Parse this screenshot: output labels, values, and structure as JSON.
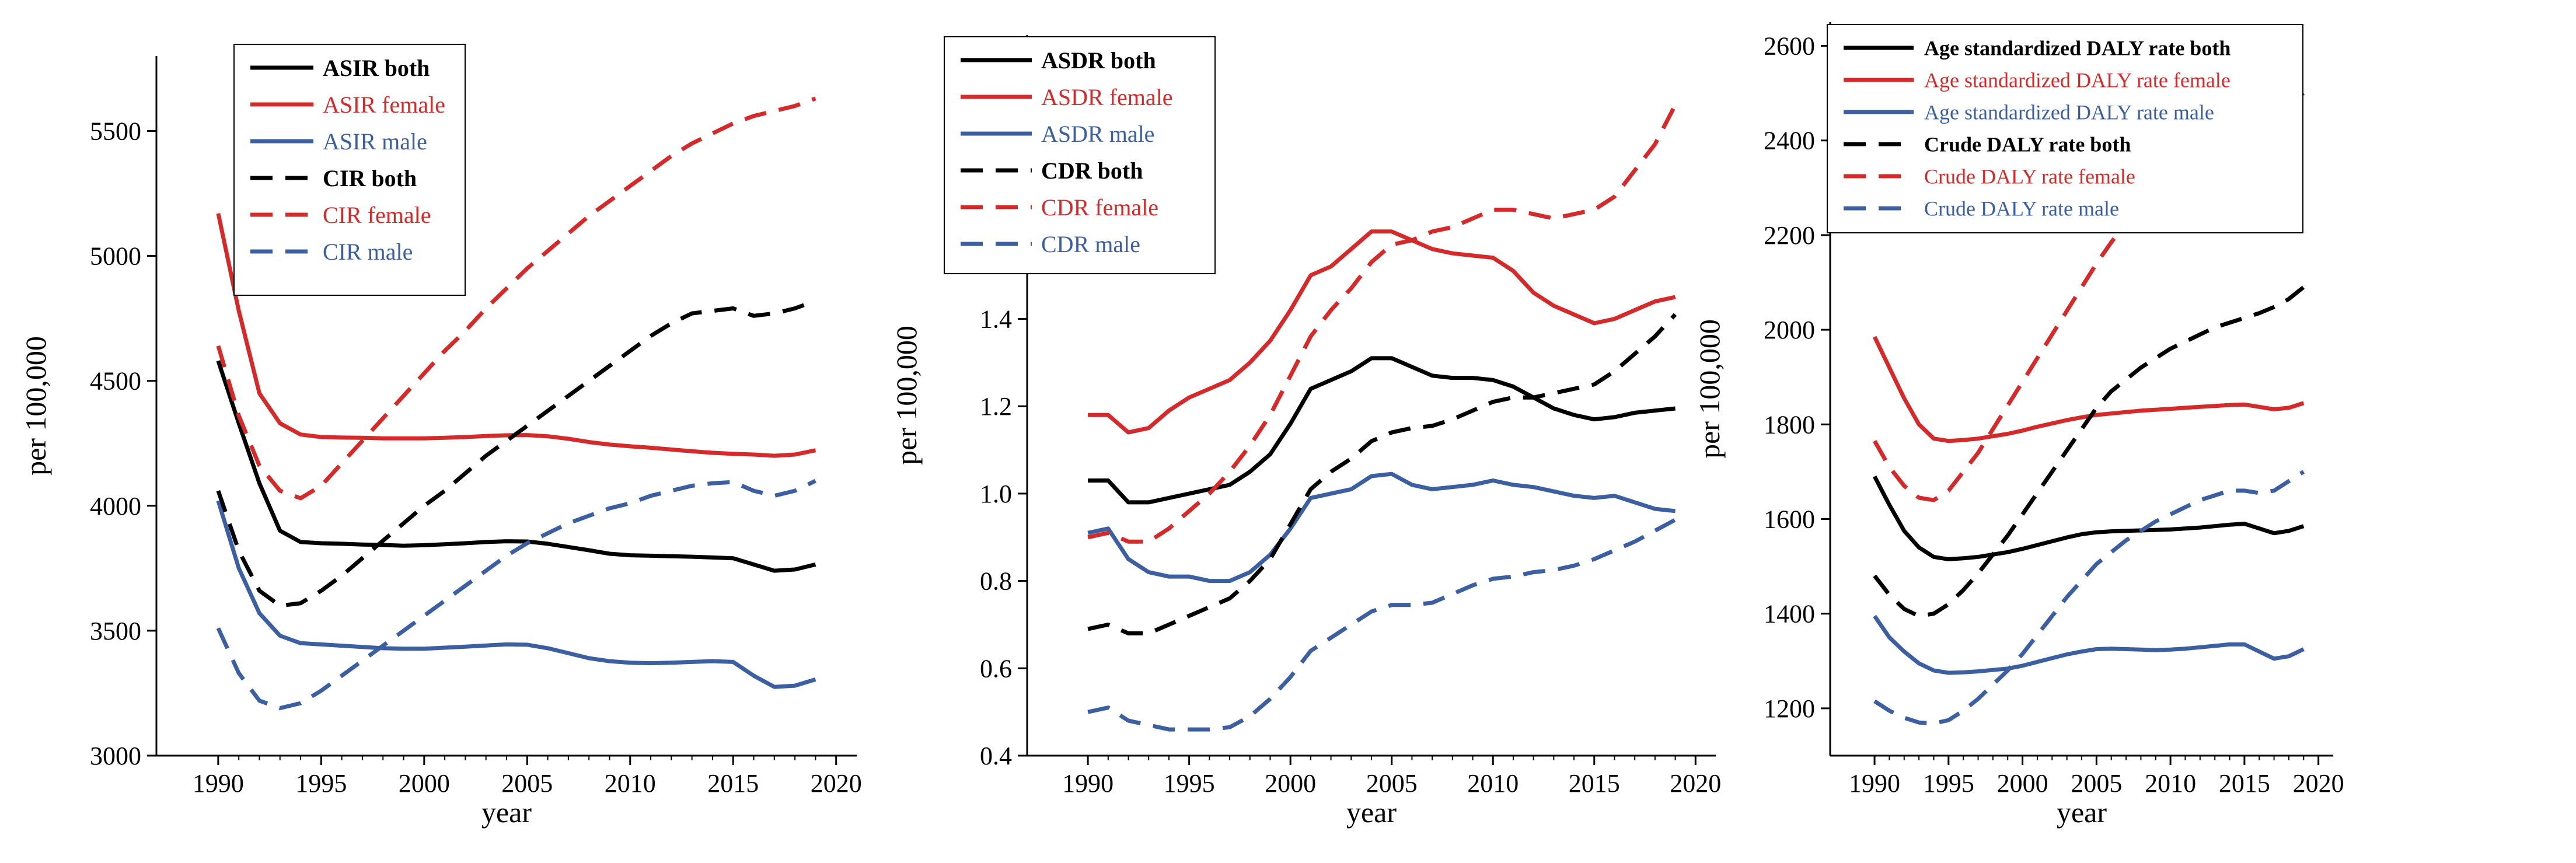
{
  "chart_data": [
    {
      "type": "line",
      "xlabel": "year",
      "ylabel": "per 100,000",
      "xlim": [
        1987,
        2021
      ],
      "ylim": [
        3000,
        5800
      ],
      "xticks": [
        "1990",
        "1995",
        "2000",
        "2005",
        "2010",
        "2015",
        "2020"
      ],
      "yticks": [
        "3000",
        "3500",
        "4000",
        "4500",
        "5000",
        "5500"
      ],
      "legend": "top-left",
      "x": [
        1990,
        1991,
        1992,
        1993,
        1994,
        1995,
        1996,
        1997,
        1998,
        1999,
        2000,
        2001,
        2002,
        2003,
        2004,
        2005,
        2006,
        2007,
        2008,
        2009,
        2010,
        2011,
        2012,
        2013,
        2014,
        2015,
        2016,
        2017,
        2018,
        2019
      ],
      "series": [
        {
          "name": "ASIR both",
          "color": "#000000",
          "dash": "solid",
          "values": [
            4580,
            4330,
            4090,
            3900,
            3855,
            3850,
            3848,
            3845,
            3843,
            3840,
            3842,
            3846,
            3850,
            3855,
            3858,
            3857,
            3848,
            3835,
            3822,
            3808,
            3802,
            3800,
            3798,
            3796,
            3793,
            3790,
            3765,
            3740,
            3745,
            3765
          ]
        },
        {
          "name": "ASIR female",
          "color": "#d42a2a",
          "dash": "solid",
          "values": [
            5170,
            4780,
            4450,
            4330,
            4285,
            4275,
            4273,
            4272,
            4270,
            4270,
            4270,
            4272,
            4275,
            4279,
            4282,
            4283,
            4278,
            4268,
            4255,
            4245,
            4238,
            4232,
            4225,
            4218,
            4212,
            4208,
            4205,
            4200,
            4205,
            4222
          ]
        },
        {
          "name": "ASIR male",
          "color": "#3b5fa0",
          "dash": "solid",
          "values": [
            4020,
            3750,
            3570,
            3480,
            3450,
            3445,
            3440,
            3435,
            3430,
            3428,
            3428,
            3432,
            3436,
            3441,
            3445,
            3444,
            3430,
            3410,
            3390,
            3378,
            3372,
            3370,
            3372,
            3375,
            3378,
            3375,
            3320,
            3275,
            3280,
            3305
          ]
        },
        {
          "name": "CIR both",
          "color": "#000000",
          "dash": "dash",
          "values": [
            4060,
            3820,
            3660,
            3600,
            3610,
            3660,
            3720,
            3790,
            3860,
            3930,
            4000,
            4060,
            4130,
            4200,
            4260,
            4320,
            4380,
            4440,
            4500,
            4560,
            4620,
            4680,
            4730,
            4770,
            4780,
            4790,
            4760,
            4770,
            4790,
            4820
          ]
        },
        {
          "name": "CIR female",
          "color": "#d42a2a",
          "dash": "dash",
          "values": [
            4640,
            4360,
            4160,
            4060,
            4030,
            4080,
            4170,
            4260,
            4350,
            4440,
            4530,
            4620,
            4700,
            4790,
            4870,
            4950,
            5020,
            5090,
            5160,
            5220,
            5280,
            5340,
            5400,
            5450,
            5490,
            5530,
            5560,
            5580,
            5600,
            5630
          ]
        },
        {
          "name": "CIR male",
          "color": "#3b5fa0",
          "dash": "dash",
          "values": [
            3510,
            3330,
            3220,
            3190,
            3210,
            3260,
            3320,
            3380,
            3440,
            3500,
            3560,
            3620,
            3680,
            3740,
            3800,
            3850,
            3890,
            3930,
            3960,
            3990,
            4010,
            4040,
            4060,
            4080,
            4090,
            4095,
            4060,
            4040,
            4060,
            4100
          ]
        }
      ]
    },
    {
      "type": "line",
      "xlabel": "year",
      "ylabel": "per 100,000",
      "xlim": [
        1987,
        2021
      ],
      "ylim": [
        0.4,
        2.05
      ],
      "xticks": [
        "1990",
        "1995",
        "2000",
        "2005",
        "2010",
        "2015",
        "2020"
      ],
      "yticks": [
        "0.4",
        "0.6",
        "0.8",
        "1.0",
        "1.2",
        "1.4",
        "1.6",
        "1.8",
        "2.0"
      ],
      "legend": "top-left",
      "x": [
        1990,
        1991,
        1992,
        1993,
        1994,
        1995,
        1996,
        1997,
        1998,
        1999,
        2000,
        2001,
        2002,
        2003,
        2004,
        2005,
        2006,
        2007,
        2008,
        2009,
        2010,
        2011,
        2012,
        2013,
        2014,
        2015,
        2016,
        2017,
        2018,
        2019
      ],
      "series": [
        {
          "name": "ASDR both",
          "color": "#000000",
          "dash": "solid",
          "values": [
            1.03,
            1.03,
            0.98,
            0.98,
            0.99,
            1.0,
            1.01,
            1.02,
            1.05,
            1.09,
            1.16,
            1.24,
            1.26,
            1.28,
            1.31,
            1.31,
            1.29,
            1.27,
            1.265,
            1.265,
            1.26,
            1.245,
            1.22,
            1.195,
            1.18,
            1.17,
            1.175,
            1.185,
            1.19,
            1.195
          ]
        },
        {
          "name": "ASDR female",
          "color": "#d42a2a",
          "dash": "solid",
          "values": [
            1.18,
            1.18,
            1.14,
            1.15,
            1.19,
            1.22,
            1.24,
            1.26,
            1.3,
            1.35,
            1.42,
            1.5,
            1.52,
            1.56,
            1.6,
            1.6,
            1.58,
            1.56,
            1.55,
            1.545,
            1.54,
            1.51,
            1.46,
            1.43,
            1.41,
            1.39,
            1.4,
            1.42,
            1.44,
            1.45
          ]
        },
        {
          "name": "ASDR male",
          "color": "#3b5fa0",
          "dash": "solid",
          "values": [
            0.91,
            0.92,
            0.85,
            0.82,
            0.81,
            0.81,
            0.8,
            0.8,
            0.82,
            0.86,
            0.92,
            0.99,
            1.0,
            1.01,
            1.04,
            1.045,
            1.02,
            1.01,
            1.015,
            1.02,
            1.03,
            1.02,
            1.015,
            1.005,
            0.995,
            0.99,
            0.995,
            0.98,
            0.965,
            0.96
          ]
        },
        {
          "name": "CDR both",
          "color": "#000000",
          "dash": "dash",
          "values": [
            0.69,
            0.7,
            0.68,
            0.68,
            0.7,
            0.72,
            0.74,
            0.76,
            0.8,
            0.85,
            0.93,
            1.01,
            1.05,
            1.08,
            1.12,
            1.14,
            1.15,
            1.155,
            1.17,
            1.19,
            1.21,
            1.22,
            1.22,
            1.23,
            1.24,
            1.25,
            1.28,
            1.32,
            1.36,
            1.41
          ]
        },
        {
          "name": "CDR female",
          "color": "#d42a2a",
          "dash": "dash",
          "values": [
            0.9,
            0.91,
            0.89,
            0.89,
            0.92,
            0.96,
            1.0,
            1.05,
            1.11,
            1.18,
            1.27,
            1.36,
            1.42,
            1.47,
            1.53,
            1.57,
            1.58,
            1.6,
            1.61,
            1.63,
            1.65,
            1.65,
            1.64,
            1.63,
            1.64,
            1.65,
            1.68,
            1.74,
            1.8,
            1.89
          ]
        },
        {
          "name": "CDR male",
          "color": "#3b5fa0",
          "dash": "dash",
          "values": [
            0.5,
            0.51,
            0.48,
            0.47,
            0.46,
            0.46,
            0.46,
            0.465,
            0.49,
            0.53,
            0.58,
            0.64,
            0.67,
            0.7,
            0.73,
            0.745,
            0.745,
            0.75,
            0.77,
            0.79,
            0.805,
            0.81,
            0.82,
            0.825,
            0.835,
            0.85,
            0.87,
            0.89,
            0.915,
            0.94
          ]
        }
      ]
    },
    {
      "type": "line",
      "xlabel": "year",
      "ylabel": "per 100,000",
      "xlim": [
        1987,
        2021
      ],
      "ylim": [
        1100,
        2650
      ],
      "xticks": [
        "1990",
        "1995",
        "2000",
        "2005",
        "2010",
        "2015",
        "2020"
      ],
      "yticks": [
        "1200",
        "1400",
        "1600",
        "1800",
        "2000",
        "2200",
        "2400",
        "2600"
      ],
      "legend": "top-left",
      "x": [
        1990,
        1991,
        1992,
        1993,
        1994,
        1995,
        1996,
        1997,
        1998,
        1999,
        2000,
        2001,
        2002,
        2003,
        2004,
        2005,
        2006,
        2007,
        2008,
        2009,
        2010,
        2011,
        2012,
        2013,
        2014,
        2015,
        2016,
        2017,
        2018,
        2019
      ],
      "series": [
        {
          "name": "Age standardized DALY rate both",
          "color": "#000000",
          "dash": "solid",
          "values": [
            1690,
            1630,
            1575,
            1540,
            1520,
            1515,
            1517,
            1520,
            1525,
            1530,
            1537,
            1545,
            1553,
            1561,
            1568,
            1572,
            1574,
            1575,
            1576,
            1577,
            1578,
            1580,
            1582,
            1585,
            1588,
            1590,
            1580,
            1570,
            1575,
            1585
          ]
        },
        {
          "name": "Age standardized DALY rate female",
          "color": "#d42a2a",
          "dash": "solid",
          "values": [
            1985,
            1920,
            1855,
            1800,
            1770,
            1765,
            1767,
            1770,
            1775,
            1780,
            1787,
            1795,
            1802,
            1809,
            1815,
            1820,
            1823,
            1826,
            1829,
            1831,
            1833,
            1835,
            1837,
            1839,
            1841,
            1842,
            1837,
            1832,
            1835,
            1845
          ]
        },
        {
          "name": "Age standardized DALY rate male",
          "color": "#3b5fa0",
          "dash": "solid",
          "values": [
            1395,
            1350,
            1320,
            1295,
            1280,
            1275,
            1276,
            1278,
            1281,
            1284,
            1290,
            1298,
            1306,
            1314,
            1320,
            1325,
            1326,
            1325,
            1324,
            1323,
            1324,
            1326,
            1329,
            1332,
            1335,
            1335,
            1320,
            1305,
            1310,
            1325
          ]
        },
        {
          "name": "Crude DALY rate both",
          "color": "#000000",
          "dash": "dash",
          "values": [
            1480,
            1440,
            1410,
            1395,
            1400,
            1420,
            1450,
            1485,
            1525,
            1565,
            1610,
            1655,
            1700,
            1745,
            1790,
            1835,
            1870,
            1895,
            1920,
            1940,
            1960,
            1975,
            1990,
            2005,
            2015,
            2025,
            2035,
            2048,
            2065,
            2090
          ]
        },
        {
          "name": "Crude DALY rate female",
          "color": "#d42a2a",
          "dash": "dash",
          "values": [
            1765,
            1710,
            1670,
            1645,
            1640,
            1660,
            1700,
            1740,
            1790,
            1840,
            1890,
            1940,
            1990,
            2040,
            2090,
            2140,
            2185,
            2225,
            2265,
            2300,
            2335,
            2360,
            2385,
            2405,
            2420,
            2435,
            2450,
            2465,
            2480,
            2500
          ]
        },
        {
          "name": "Crude DALY rate male",
          "color": "#3b5fa0",
          "dash": "dash",
          "values": [
            1215,
            1195,
            1180,
            1170,
            1168,
            1175,
            1195,
            1220,
            1250,
            1280,
            1315,
            1355,
            1395,
            1435,
            1470,
            1505,
            1530,
            1555,
            1575,
            1595,
            1610,
            1625,
            1640,
            1650,
            1660,
            1660,
            1655,
            1660,
            1680,
            1700
          ]
        }
      ]
    }
  ]
}
